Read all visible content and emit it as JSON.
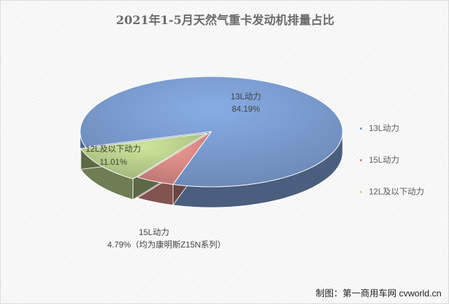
{
  "chart_data": {
    "type": "pie",
    "title": "2021年1-5月天然气重卡发动机排量占比",
    "slices": [
      {
        "name": "13L动力",
        "value": 84.19,
        "label": "84.19%",
        "color": "#7b9cd0"
      },
      {
        "name": "15L动力",
        "value": 4.79,
        "label": "4.79%（均为康明斯Z15N系列）",
        "color": "#d98a86"
      },
      {
        "name": "12L及以下动力",
        "value": 11.01,
        "label": "11.01%",
        "color": "#b9d08d"
      }
    ],
    "legend_position": "right",
    "three_d": true
  },
  "credit": "制图：第一商用车网 cvworld.cn"
}
